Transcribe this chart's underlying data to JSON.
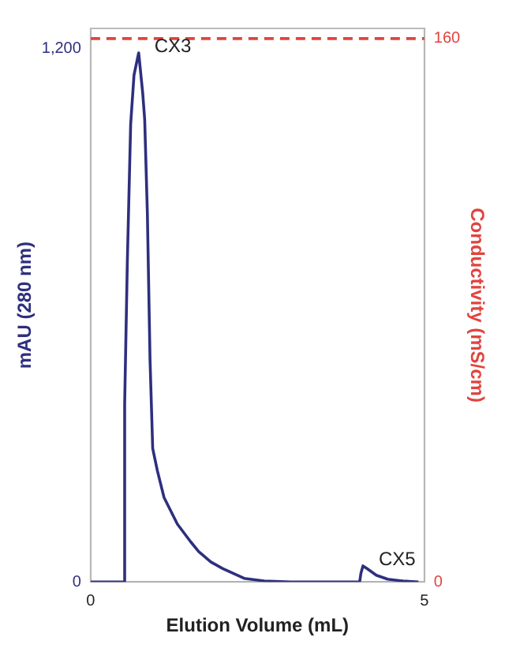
{
  "chart_data": {
    "type": "line",
    "xlabel": "Elution Volume (mL)",
    "ylabel": "mAU (280 nm)",
    "y2label": "Conductivity (mS/cm)",
    "xlim": [
      0,
      5
    ],
    "xticks": [
      0,
      5
    ],
    "ylim": [
      0,
      1245
    ],
    "yticks": [
      0,
      {
        "value": 1200,
        "label": "1,200"
      }
    ],
    "y2lim": [
      0,
      163
    ],
    "y2ticks": [
      0,
      160
    ],
    "series": [
      {
        "color": "#2e2f7f",
        "x": [
          0,
          0.45,
          0.49,
          0.51,
          0.55,
          0.6,
          0.65,
          0.72,
          0.78,
          0.81,
          0.85,
          0.89,
          0.93,
          1.0,
          1.1,
          1.3,
          1.5,
          1.62,
          1.8,
          1.98,
          2.3,
          2.6,
          3.0,
          4.03,
          4.05,
          4.08,
          4.14,
          4.28,
          4.45,
          4.68,
          4.91
        ],
        "values": [
          0,
          0,
          0,
          400,
          720,
          1030,
          1140,
          1190,
          1100,
          1040,
          830,
          500,
          300,
          250,
          190,
          130,
          90,
          68,
          45,
          30,
          8,
          2,
          0,
          0,
          20,
          36,
          30,
          15,
          6,
          2,
          0
        ]
      },
      {
        "color": "#e0443e",
        "axis": "y2",
        "line_style": "dashed",
        "x": [
          0,
          5
        ],
        "values": [
          160,
          160
        ]
      }
    ],
    "annotations": [
      {
        "text": "CX3",
        "x": 0.72,
        "y": 1190
      },
      {
        "text": "CX5",
        "x": 4.08,
        "y": 36
      }
    ],
    "grid": false,
    "legend": false,
    "marker": "none"
  }
}
